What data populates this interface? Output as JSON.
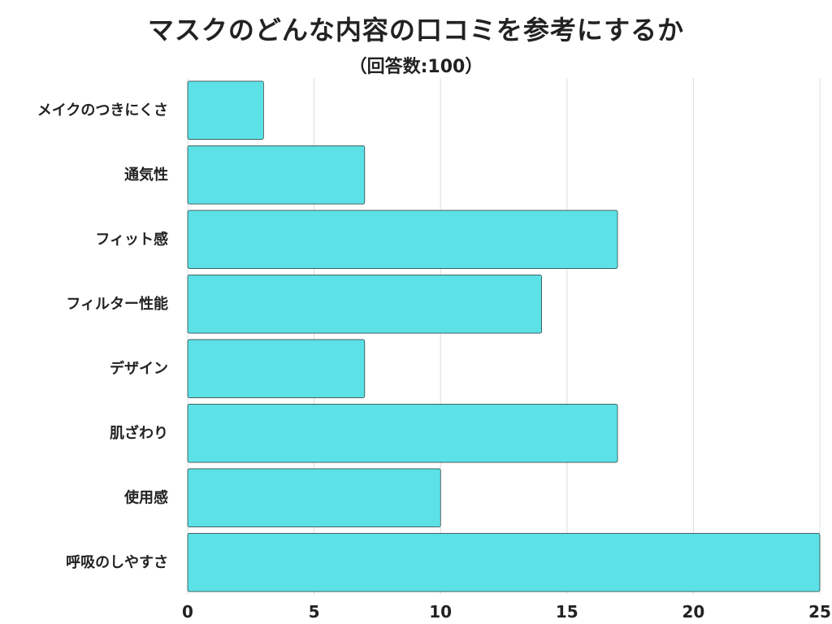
{
  "chart_data": {
    "type": "bar",
    "orientation": "horizontal",
    "title": "マスクのどんな内容の口コミを参考にするか",
    "subtitle": "（回答数:100）",
    "categories": [
      "メイクのつきにくさ",
      "通気性",
      "フィット感",
      "フィルター性能",
      "デザイン",
      "肌ざわり",
      "使用感",
      "呼吸のしやすさ"
    ],
    "values": [
      3,
      7,
      17,
      14,
      7,
      17,
      10,
      25
    ],
    "xlim": [
      0,
      25
    ],
    "xticks": [
      "0",
      "5",
      "10",
      "15",
      "20",
      "25"
    ],
    "xlabel": "",
    "ylabel": "",
    "grid": true,
    "bar_color": "#5ce1e6"
  }
}
